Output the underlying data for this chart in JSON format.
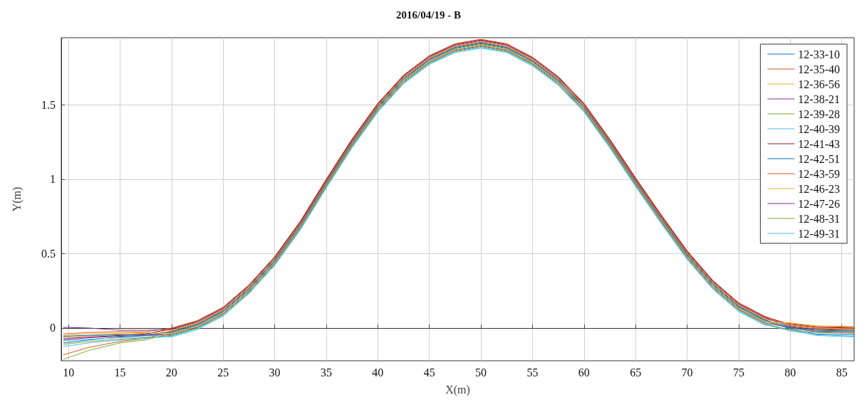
{
  "chart_data": {
    "type": "line",
    "title": "2016/04/19 - B",
    "xlabel": "X(m)",
    "ylabel": "Y(m)",
    "x": [
      9.5,
      12,
      15,
      17.5,
      20,
      22.5,
      25,
      27.5,
      30,
      32.5,
      35,
      37.5,
      40,
      42.5,
      45,
      47.5,
      50,
      52.5,
      55,
      57.5,
      60,
      62.5,
      65,
      67.5,
      70,
      72.5,
      75,
      77.5,
      80,
      82.5,
      86.2
    ],
    "series": [
      {
        "name": "12-33-10",
        "color": "#0072bd",
        "values": [
          -0.1,
          -0.08,
          -0.06,
          -0.05,
          -0.03,
          0.02,
          0.11,
          0.26,
          0.45,
          0.69,
          0.97,
          1.24,
          1.48,
          1.67,
          1.8,
          1.88,
          1.91,
          1.88,
          1.79,
          1.66,
          1.48,
          1.24,
          0.98,
          0.73,
          0.49,
          0.29,
          0.14,
          0.05,
          -0.005,
          -0.04,
          -0.045
        ]
      },
      {
        "name": "12-35-40",
        "color": "#d95319",
        "values": [
          -0.04,
          -0.03,
          -0.025,
          -0.025,
          0.0,
          0.05,
          0.14,
          0.29,
          0.48,
          0.72,
          1.0,
          1.27,
          1.51,
          1.7,
          1.83,
          1.91,
          1.94,
          1.91,
          1.82,
          1.69,
          1.51,
          1.27,
          1.01,
          0.76,
          0.52,
          0.32,
          0.17,
          0.08,
          0.015,
          -0.005,
          -0.01
        ]
      },
      {
        "name": "12-36-56",
        "color": "#edb120",
        "values": [
          -0.06,
          -0.05,
          -0.04,
          -0.035,
          -0.015,
          0.035,
          0.125,
          0.275,
          0.465,
          0.705,
          0.985,
          1.255,
          1.495,
          1.685,
          1.815,
          1.895,
          1.925,
          1.895,
          1.805,
          1.675,
          1.495,
          1.255,
          0.995,
          0.745,
          0.505,
          0.305,
          0.155,
          0.065,
          0.02,
          0.0,
          -0.005
        ]
      },
      {
        "name": "12-38-21",
        "color": "#7e2f8e",
        "values": [
          0.005,
          0.0,
          -0.015,
          -0.015,
          -0.01,
          0.04,
          0.13,
          0.28,
          0.47,
          0.71,
          0.99,
          1.26,
          1.5,
          1.69,
          1.82,
          1.9,
          1.93,
          1.9,
          1.81,
          1.68,
          1.5,
          1.26,
          1.0,
          0.75,
          0.51,
          0.31,
          0.16,
          0.07,
          0.01,
          -0.01,
          -0.015
        ]
      },
      {
        "name": "12-39-28",
        "color": "#77ac30",
        "values": [
          -0.21,
          -0.15,
          -0.1,
          -0.08,
          -0.035,
          0.015,
          0.105,
          0.255,
          0.445,
          0.685,
          0.965,
          1.235,
          1.475,
          1.665,
          1.795,
          1.875,
          1.905,
          1.875,
          1.785,
          1.655,
          1.475,
          1.235,
          0.975,
          0.725,
          0.485,
          0.285,
          0.135,
          0.045,
          0.0,
          -0.02,
          -0.025
        ]
      },
      {
        "name": "12-40-39",
        "color": "#4dbeee",
        "values": [
          -0.085,
          -0.075,
          -0.065,
          -0.06,
          -0.06,
          -0.01,
          0.08,
          0.23,
          0.42,
          0.66,
          0.94,
          1.21,
          1.45,
          1.64,
          1.77,
          1.85,
          1.88,
          1.85,
          1.76,
          1.63,
          1.45,
          1.21,
          0.95,
          0.7,
          0.46,
          0.26,
          0.11,
          0.02,
          -0.01,
          -0.05,
          -0.06
        ]
      },
      {
        "name": "12-41-43",
        "color": "#a2142f",
        "values": [
          -0.07,
          -0.06,
          -0.05,
          -0.04,
          -0.005,
          0.045,
          0.135,
          0.285,
          0.475,
          0.715,
          0.995,
          1.265,
          1.505,
          1.695,
          1.825,
          1.905,
          1.935,
          1.905,
          1.815,
          1.685,
          1.505,
          1.265,
          1.005,
          0.755,
          0.515,
          0.315,
          0.165,
          0.075,
          0.025,
          0.005,
          0.0
        ]
      },
      {
        "name": "12-42-51",
        "color": "#0072bd",
        "values": [
          -0.055,
          -0.05,
          -0.045,
          -0.045,
          -0.025,
          0.025,
          0.115,
          0.265,
          0.455,
          0.695,
          0.975,
          1.245,
          1.485,
          1.675,
          1.805,
          1.885,
          1.915,
          1.885,
          1.795,
          1.665,
          1.485,
          1.245,
          0.985,
          0.735,
          0.495,
          0.295,
          0.145,
          0.055,
          0.005,
          -0.015,
          -0.02
        ]
      },
      {
        "name": "12-43-59",
        "color": "#d95319",
        "values": [
          -0.18,
          -0.13,
          -0.09,
          -0.07,
          -0.02,
          0.03,
          0.12,
          0.27,
          0.46,
          0.7,
          0.98,
          1.25,
          1.49,
          1.68,
          1.81,
          1.89,
          1.92,
          1.89,
          1.8,
          1.67,
          1.49,
          1.25,
          0.99,
          0.74,
          0.5,
          0.3,
          0.15,
          0.06,
          0.03,
          0.01,
          0.005
        ]
      },
      {
        "name": "12-46-23",
        "color": "#edb120",
        "values": [
          -0.05,
          -0.04,
          -0.035,
          -0.03,
          -0.04,
          0.01,
          0.1,
          0.25,
          0.44,
          0.68,
          0.96,
          1.23,
          1.47,
          1.66,
          1.79,
          1.87,
          1.9,
          1.87,
          1.78,
          1.65,
          1.47,
          1.23,
          0.97,
          0.72,
          0.48,
          0.28,
          0.13,
          0.04,
          0.035,
          0.015,
          0.01
        ]
      },
      {
        "name": "12-47-26",
        "color": "#7e2f8e",
        "values": [
          -0.08,
          -0.065,
          -0.055,
          -0.05,
          -0.045,
          0.005,
          0.095,
          0.245,
          0.435,
          0.675,
          0.955,
          1.225,
          1.465,
          1.655,
          1.785,
          1.865,
          1.895,
          1.865,
          1.775,
          1.645,
          1.465,
          1.225,
          0.965,
          0.715,
          0.475,
          0.275,
          0.125,
          0.035,
          0.003,
          -0.025,
          -0.03
        ]
      },
      {
        "name": "12-48-31",
        "color": "#77ac30",
        "values": [
          -0.11,
          -0.09,
          -0.075,
          -0.065,
          -0.05,
          0.0,
          0.09,
          0.24,
          0.43,
          0.67,
          0.95,
          1.22,
          1.46,
          1.65,
          1.78,
          1.86,
          1.89,
          1.86,
          1.77,
          1.64,
          1.46,
          1.22,
          0.96,
          0.71,
          0.47,
          0.27,
          0.12,
          0.03,
          -0.015,
          -0.03,
          -0.035
        ]
      },
      {
        "name": "12-49-31",
        "color": "#4dbeee",
        "values": [
          -0.125,
          -0.1,
          -0.08,
          -0.07,
          -0.055,
          -0.005,
          0.085,
          0.235,
          0.425,
          0.665,
          0.945,
          1.215,
          1.455,
          1.645,
          1.775,
          1.855,
          1.885,
          1.855,
          1.765,
          1.635,
          1.455,
          1.215,
          0.955,
          0.705,
          0.465,
          0.265,
          0.115,
          0.025,
          -0.02,
          -0.045,
          -0.055
        ]
      }
    ],
    "xlim": [
      9.3,
      86.2
    ],
    "xticks": [
      10,
      15,
      20,
      25,
      30,
      35,
      40,
      45,
      50,
      55,
      60,
      65,
      70,
      75,
      80,
      85
    ],
    "ylim": [
      -0.22,
      1.95
    ],
    "yticks": [
      0,
      0.5,
      1,
      1.5
    ],
    "grid": true,
    "legend": "top right",
    "marker": "none",
    "line_style": "solid"
  }
}
